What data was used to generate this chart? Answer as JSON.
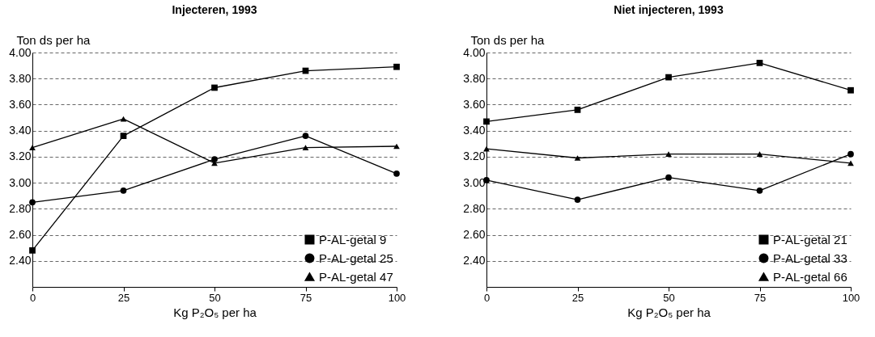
{
  "chart_data": [
    {
      "type": "line",
      "title": "Injecteren, 1993",
      "xlabel": "Kg P₂O₅ per ha",
      "ylabel": "Ton ds per ha",
      "x": [
        0,
        25,
        50,
        75,
        100
      ],
      "xlim": [
        0,
        100
      ],
      "xticks": [
        0,
        25,
        50,
        75,
        100
      ],
      "ylim": [
        2.2,
        4.0
      ],
      "yticks": [
        {
          "value": 2.4,
          "label": "2.40"
        },
        {
          "value": 2.6,
          "label": "2.60"
        },
        {
          "value": 2.8,
          "label": "2.80"
        },
        {
          "value": 3.0,
          "label": "3.00"
        },
        {
          "value": 3.2,
          "label": "3.20"
        },
        {
          "value": 3.4,
          "label": "3.40"
        },
        {
          "value": 3.6,
          "label": "3.60"
        },
        {
          "value": 3.8,
          "label": "3.80"
        },
        {
          "value": 4.0,
          "label": "4.00"
        }
      ],
      "grid": "y",
      "legend": "bottom right",
      "series": [
        {
          "name": "P-AL-getal 9",
          "color": "#000000",
          "marker": "square",
          "values": [
            2.48,
            3.36,
            3.73,
            3.86,
            3.89
          ]
        },
        {
          "name": "P-AL-getal 25",
          "color": "#000000",
          "marker": "circle",
          "values": [
            2.85,
            2.94,
            3.18,
            3.36,
            3.07
          ]
        },
        {
          "name": "P-AL-getal 47",
          "color": "#000000",
          "marker": "triangle",
          "values": [
            3.27,
            3.49,
            3.15,
            3.27,
            3.28
          ]
        }
      ]
    },
    {
      "type": "line",
      "title": "Niet injecteren, 1993",
      "xlabel": "Kg P₂O₅ per ha",
      "ylabel": "Ton ds per ha",
      "x": [
        0,
        25,
        50,
        75,
        100
      ],
      "xlim": [
        0,
        100
      ],
      "xticks": [
        0,
        25,
        50,
        75,
        100
      ],
      "ylim": [
        2.2,
        4.0
      ],
      "yticks": [
        {
          "value": 2.4,
          "label": "2.40"
        },
        {
          "value": 2.6,
          "label": "2.60"
        },
        {
          "value": 2.8,
          "label": "2.80"
        },
        {
          "value": 3.0,
          "label": "3.00"
        },
        {
          "value": 3.2,
          "label": "3.20"
        },
        {
          "value": 3.4,
          "label": "3.40"
        },
        {
          "value": 3.6,
          "label": "3.60"
        },
        {
          "value": 3.8,
          "label": "3.80"
        },
        {
          "value": 4.0,
          "label": "4.00"
        }
      ],
      "grid": "y",
      "legend": "bottom right",
      "series": [
        {
          "name": "P-AL-getal 21",
          "color": "#000000",
          "marker": "square",
          "values": [
            3.47,
            3.56,
            3.81,
            3.92,
            3.71
          ]
        },
        {
          "name": "P-AL-getal 33",
          "color": "#000000",
          "marker": "circle",
          "values": [
            3.02,
            2.87,
            3.04,
            2.94,
            3.22
          ]
        },
        {
          "name": "P-AL-getal 66",
          "color": "#000000",
          "marker": "triangle",
          "values": [
            3.26,
            3.19,
            3.22,
            3.22,
            3.15
          ]
        }
      ]
    }
  ]
}
